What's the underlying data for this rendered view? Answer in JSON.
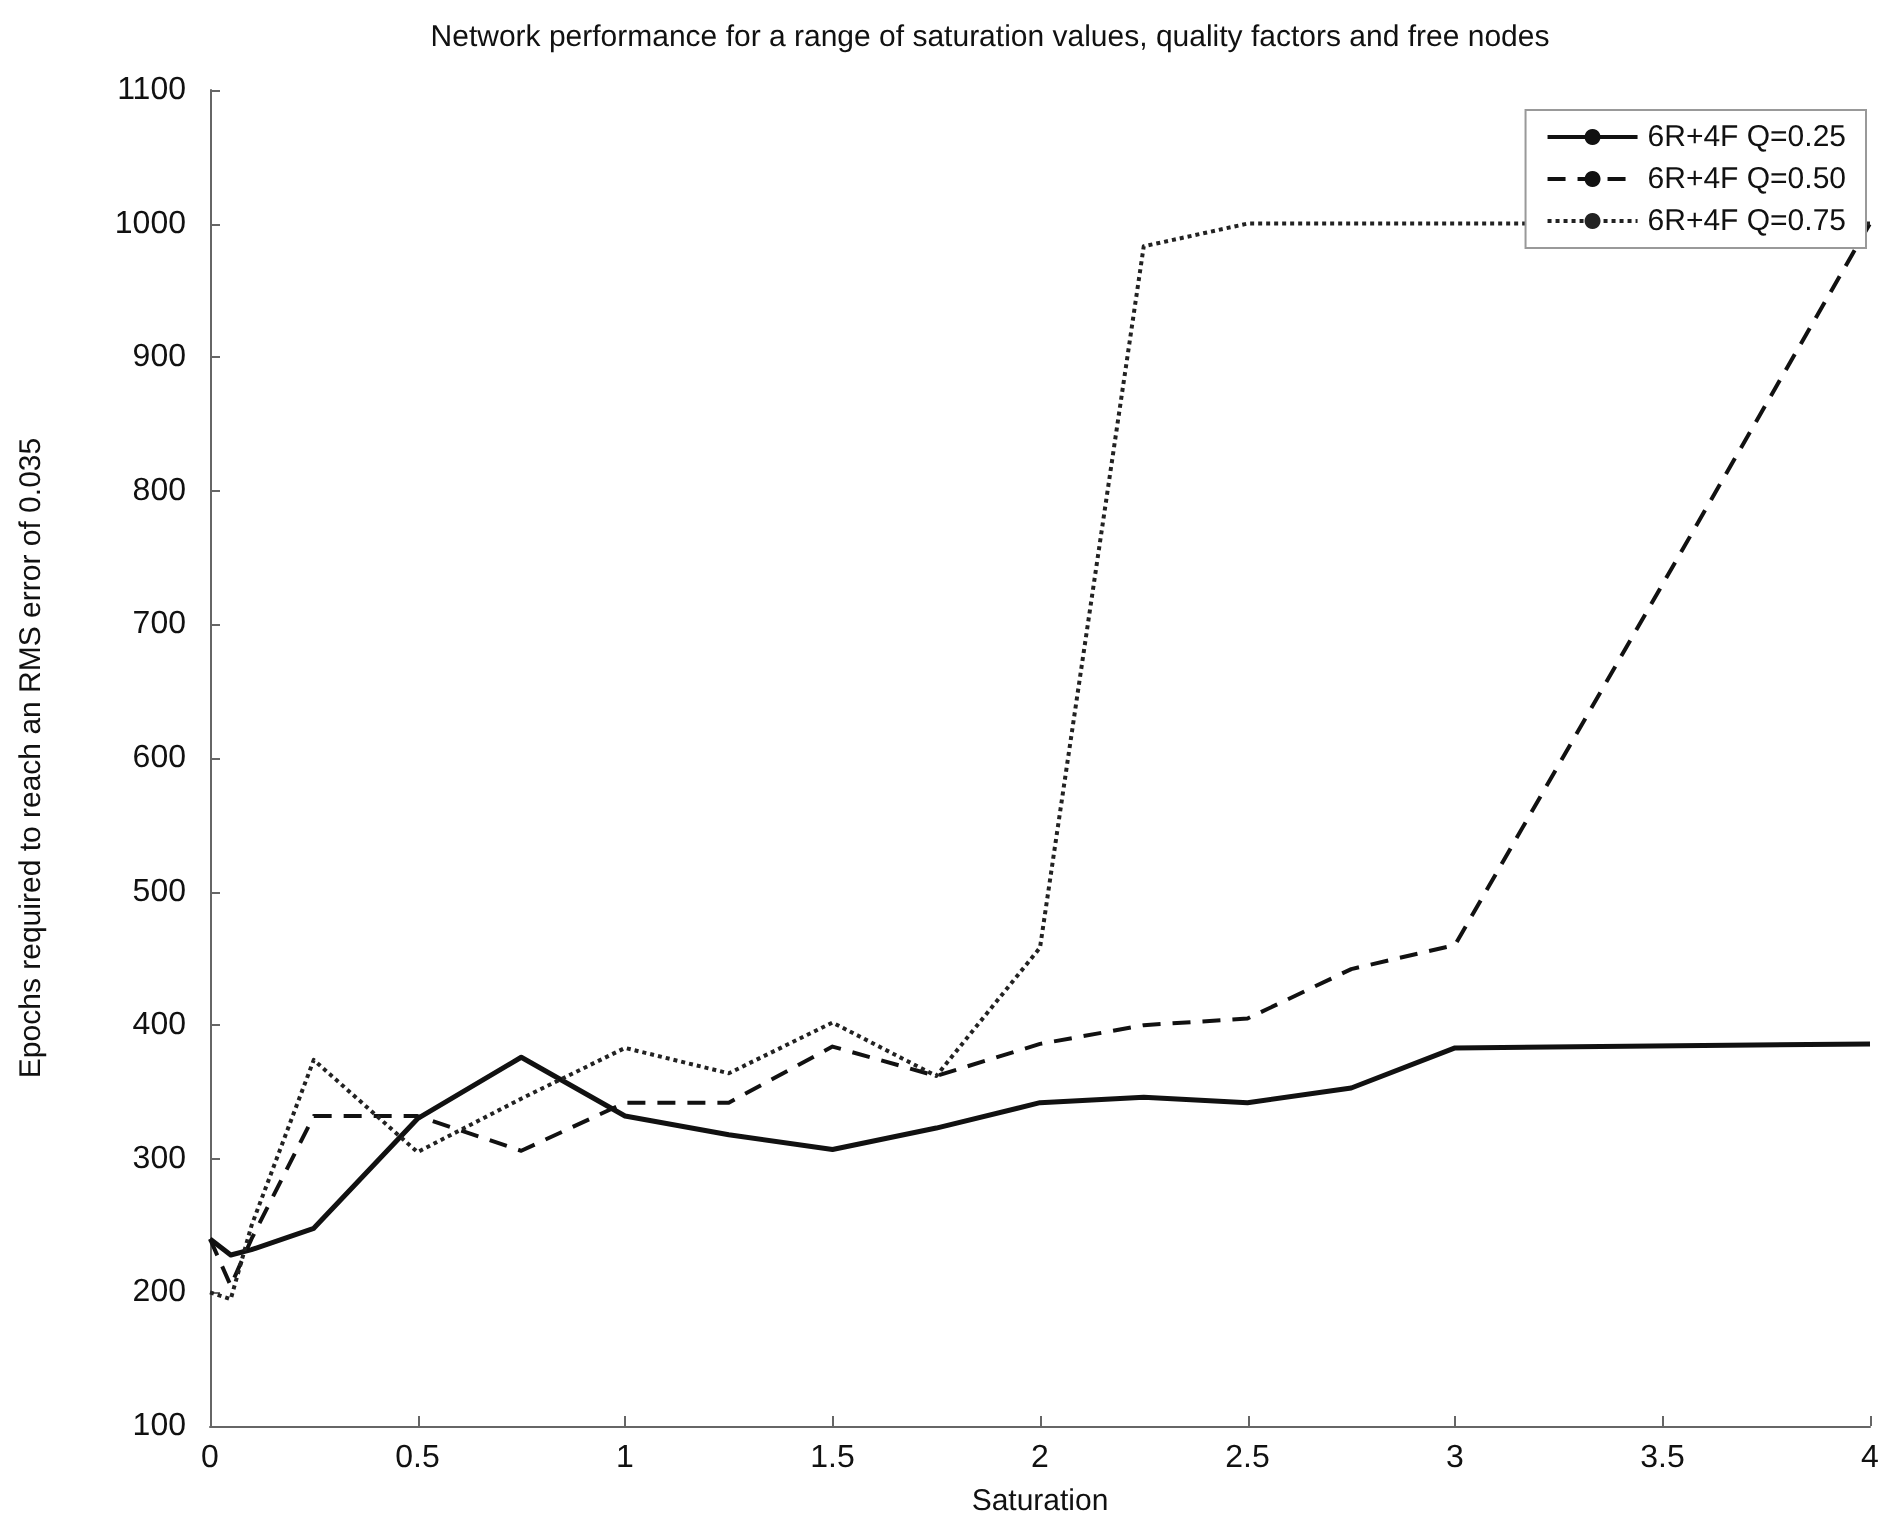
{
  "chart_data": {
    "type": "line",
    "title": "Network performance for a range of saturation values, quality factors and free nodes",
    "xlabel": "Saturation",
    "ylabel": "Epochs required to reach an RMS error of 0.035",
    "xlim": [
      0,
      4
    ],
    "xticks": [
      0,
      0.5,
      1,
      1.5,
      2,
      2.5,
      3,
      3.5,
      4
    ],
    "ylim": [
      100,
      1100
    ],
    "yticks": [
      100,
      200,
      300,
      400,
      500,
      600,
      700,
      800,
      900,
      1000,
      1100
    ],
    "grid": false,
    "legend": "top right",
    "marker": "none",
    "series": [
      {
        "name": "6R+4F Q=0.25",
        "color": "#111111",
        "line_style": "solid",
        "x": [
          0,
          0.05,
          0.1,
          0.25,
          0.5,
          0.75,
          1,
          1.25,
          1.5,
          1.75,
          2,
          2.25,
          2.5,
          2.75,
          3,
          4
        ],
        "values": [
          240,
          228,
          232,
          248,
          330,
          376,
          332,
          318,
          307,
          323,
          342,
          346,
          342,
          353,
          383,
          386
        ]
      },
      {
        "name": "6R+4F Q=0.50",
        "color": "#111111",
        "line_style": "dashed",
        "x": [
          0,
          0.05,
          0.1,
          0.25,
          0.5,
          0.75,
          1,
          1.25,
          1.5,
          1.75,
          2,
          2.25,
          2.5,
          2.75,
          3,
          4
        ],
        "values": [
          240,
          205,
          240,
          332,
          332,
          306,
          342,
          342,
          384,
          362,
          386,
          400,
          405,
          442,
          460,
          1000
        ]
      },
      {
        "name": "6R+4F Q=0.75",
        "color": "#222222",
        "line_style": "dotted",
        "x": [
          0,
          0.05,
          0.1,
          0.25,
          0.5,
          0.75,
          1,
          1.25,
          1.5,
          1.75,
          2,
          2.25,
          2.5,
          2.75,
          3,
          4
        ],
        "values": [
          200,
          195,
          250,
          374,
          305,
          345,
          383,
          364,
          402,
          362,
          458,
          983,
          1000,
          1000,
          1000,
          1000
        ]
      }
    ]
  }
}
